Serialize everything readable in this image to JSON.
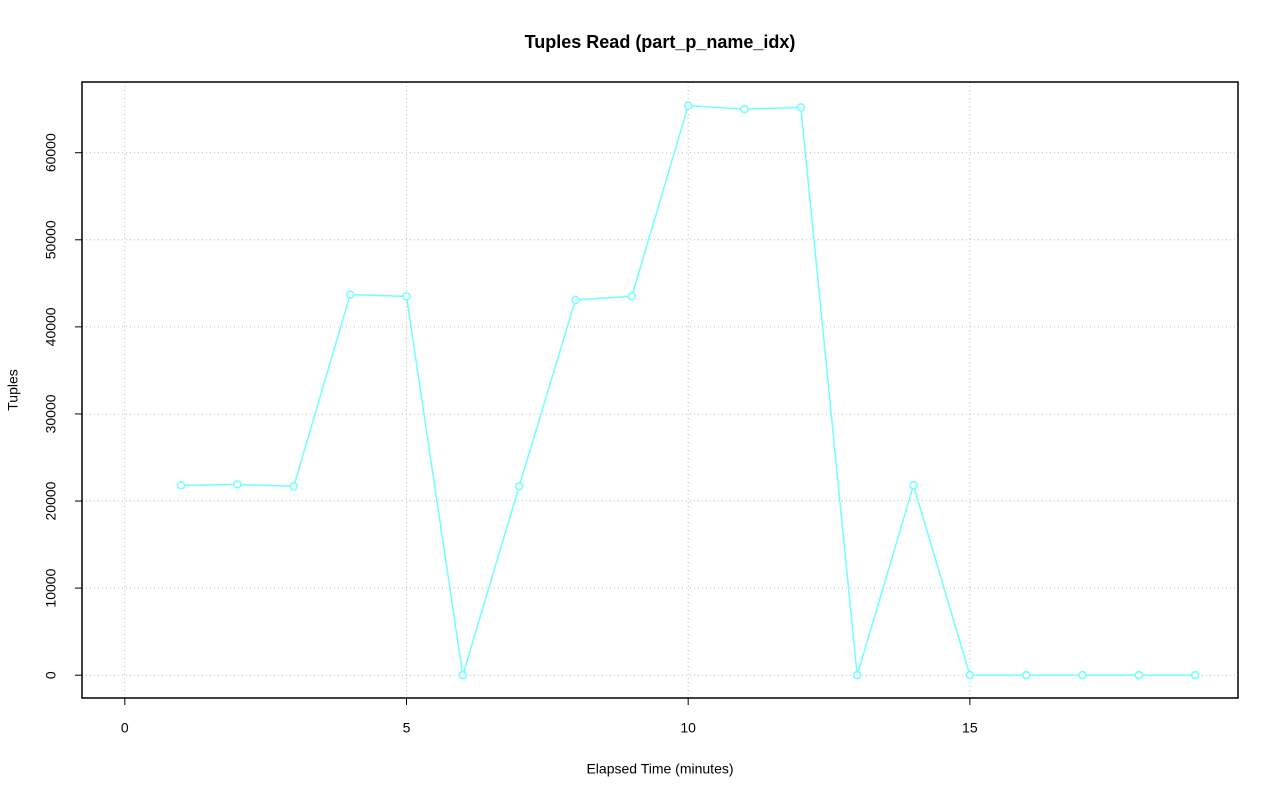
{
  "chart_data": {
    "type": "line",
    "title": "Tuples Read (part_p_name_idx)",
    "xlabel": "Elapsed Time (minutes)",
    "ylabel": "Tuples",
    "x": [
      1,
      2,
      3,
      4,
      5,
      6,
      7,
      8,
      9,
      10,
      11,
      12,
      13,
      14,
      15,
      16,
      17,
      18,
      19
    ],
    "values": [
      21800,
      21900,
      21700,
      43700,
      43500,
      0,
      21700,
      43100,
      43500,
      65400,
      65000,
      65200,
      0,
      21800,
      0,
      0,
      0,
      0,
      0
    ],
    "color": "#70ffff",
    "xlim": [
      -0.76,
      19.76
    ],
    "xticks": [
      0,
      5,
      10,
      15
    ],
    "ylim": [
      -2620,
      68120
    ],
    "yticks": [
      0,
      10000,
      20000,
      30000,
      40000,
      50000,
      60000
    ],
    "grid": true
  }
}
